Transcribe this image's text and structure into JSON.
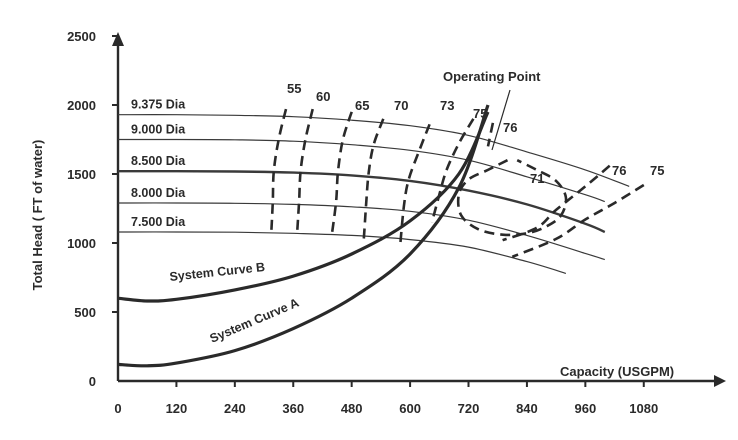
{
  "chart_data": {
    "type": "line",
    "xlabel": "Capacity (USGPM)",
    "ylabel": "Total Head ( FT of water)",
    "xlim": [
      0,
      1200
    ],
    "ylim": [
      0,
      2500
    ],
    "xticks": [
      0,
      120,
      240,
      360,
      480,
      600,
      720,
      840,
      960,
      1080
    ],
    "yticks": [
      0,
      500,
      1000,
      1500,
      2000,
      2500
    ],
    "impeller_curves": [
      {
        "name": "9.375 Dia",
        "heavy": false,
        "points": [
          [
            0,
            1930
          ],
          [
            120,
            1930
          ],
          [
            240,
            1925
          ],
          [
            360,
            1915
          ],
          [
            480,
            1890
          ],
          [
            600,
            1850
          ],
          [
            720,
            1780
          ],
          [
            840,
            1660
          ],
          [
            960,
            1530
          ],
          [
            1050,
            1410
          ]
        ]
      },
      {
        "name": "9.000 Dia",
        "heavy": false,
        "points": [
          [
            0,
            1750
          ],
          [
            120,
            1750
          ],
          [
            240,
            1748
          ],
          [
            360,
            1738
          ],
          [
            480,
            1712
          ],
          [
            600,
            1672
          ],
          [
            720,
            1600
          ],
          [
            840,
            1480
          ],
          [
            960,
            1350
          ],
          [
            1000,
            1300
          ]
        ]
      },
      {
        "name": "8.500 Dia",
        "heavy": true,
        "points": [
          [
            0,
            1520
          ],
          [
            120,
            1520
          ],
          [
            240,
            1518
          ],
          [
            360,
            1510
          ],
          [
            480,
            1490
          ],
          [
            600,
            1450
          ],
          [
            720,
            1380
          ],
          [
            840,
            1280
          ],
          [
            960,
            1140
          ],
          [
            1000,
            1080
          ]
        ]
      },
      {
        "name": "8.000 Dia",
        "heavy": false,
        "points": [
          [
            0,
            1290
          ],
          [
            120,
            1290
          ],
          [
            240,
            1288
          ],
          [
            360,
            1280
          ],
          [
            480,
            1262
          ],
          [
            600,
            1230
          ],
          [
            720,
            1165
          ],
          [
            840,
            1055
          ],
          [
            960,
            925
          ],
          [
            1000,
            880
          ]
        ]
      },
      {
        "name": "7.500 Dia",
        "heavy": false,
        "points": [
          [
            0,
            1080
          ],
          [
            120,
            1080
          ],
          [
            240,
            1078
          ],
          [
            360,
            1070
          ],
          [
            480,
            1055
          ],
          [
            600,
            1025
          ],
          [
            720,
            970
          ],
          [
            840,
            865
          ],
          [
            920,
            780
          ]
        ]
      }
    ],
    "system_curves": [
      {
        "name": "System Curve B",
        "points": [
          [
            0,
            600
          ],
          [
            60,
            580
          ],
          [
            120,
            592
          ],
          [
            240,
            660
          ],
          [
            360,
            760
          ],
          [
            480,
            920
          ],
          [
            600,
            1160
          ],
          [
            700,
            1500
          ],
          [
            760,
            1950
          ]
        ]
      },
      {
        "name": "System Curve A",
        "points": [
          [
            0,
            120
          ],
          [
            60,
            110
          ],
          [
            120,
            130
          ],
          [
            240,
            220
          ],
          [
            360,
            380
          ],
          [
            480,
            600
          ],
          [
            600,
            920
          ],
          [
            700,
            1400
          ],
          [
            760,
            2000
          ]
        ]
      }
    ],
    "efficiency_contours": [
      {
        "label": "55",
        "points": [
          [
            345,
            1970
          ],
          [
            330,
            1750
          ],
          [
            320,
            1520
          ],
          [
            318,
            1300
          ],
          [
            315,
            1080
          ]
        ]
      },
      {
        "label": "60",
        "points": [
          [
            400,
            1970
          ],
          [
            385,
            1750
          ],
          [
            375,
            1520
          ],
          [
            372,
            1300
          ],
          [
            368,
            1080
          ]
        ]
      },
      {
        "label": "65",
        "points": [
          [
            480,
            1950
          ],
          [
            462,
            1750
          ],
          [
            452,
            1520
          ],
          [
            448,
            1300
          ],
          [
            440,
            1080
          ]
        ]
      },
      {
        "label": "70",
        "points": [
          [
            545,
            1900
          ],
          [
            525,
            1710
          ],
          [
            515,
            1510
          ],
          [
            510,
            1300
          ],
          [
            505,
            1030
          ]
        ]
      },
      {
        "label": "73",
        "points": [
          [
            640,
            1860
          ],
          [
            620,
            1680
          ],
          [
            598,
            1470
          ],
          [
            588,
            1290
          ],
          [
            580,
            1000
          ]
        ]
      },
      {
        "label": "75",
        "points": [
          [
            730,
            1900
          ],
          [
            700,
            1720
          ],
          [
            675,
            1530
          ],
          [
            660,
            1350
          ],
          [
            645,
            1150
          ]
        ]
      },
      {
        "label": "76",
        "points": [
          [
            770,
            1870
          ],
          [
            760,
            1700
          ]
        ]
      },
      {
        "label": "71",
        "points": [
          [
            800,
            1600
          ],
          [
            760,
            1530
          ],
          [
            720,
            1460
          ],
          [
            700,
            1350
          ],
          [
            705,
            1200
          ],
          [
            740,
            1100
          ],
          [
            790,
            1060
          ],
          [
            840,
            1070
          ],
          [
            880,
            1120
          ],
          [
            910,
            1200
          ],
          [
            920,
            1330
          ],
          [
            900,
            1450
          ],
          [
            860,
            1530
          ],
          [
            820,
            1600
          ]
        ]
      },
      {
        "label": "76",
        "points": [
          [
            1010,
            1560
          ],
          [
            960,
            1410
          ],
          [
            900,
            1240
          ],
          [
            860,
            1110
          ],
          [
            790,
            1020
          ]
        ]
      },
      {
        "label": "75",
        "points": [
          [
            1080,
            1420
          ],
          [
            1020,
            1290
          ],
          [
            960,
            1170
          ],
          [
            900,
            1030
          ],
          [
            810,
            900
          ]
        ]
      }
    ],
    "annotations": [
      {
        "text": "Operating Point",
        "x": 708,
        "y": 1960
      }
    ]
  }
}
